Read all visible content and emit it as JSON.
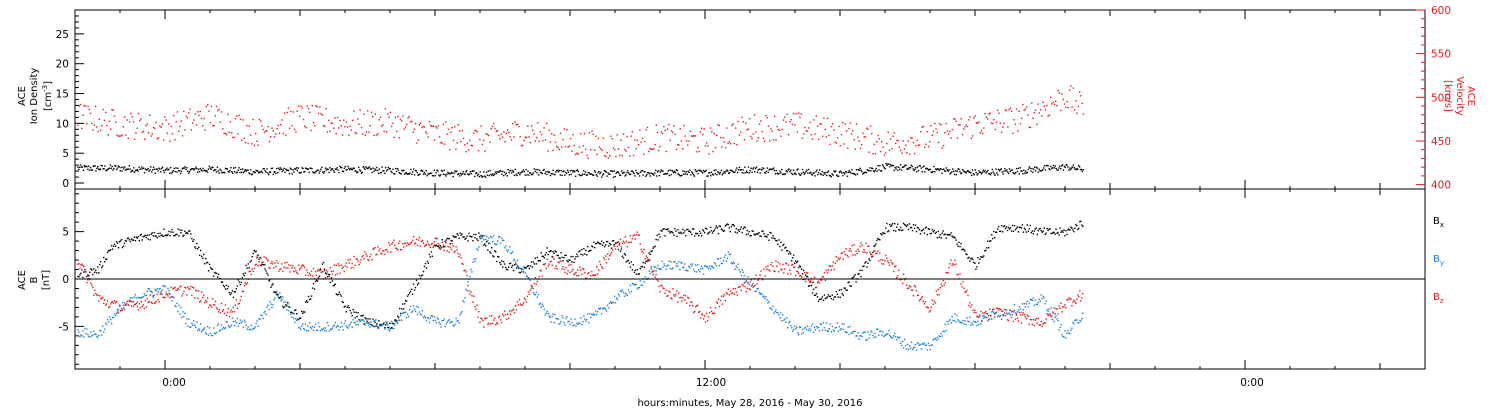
{
  "footer": {
    "xlabel": "hours:minutes, May 28, 2016 - May 30, 2016"
  },
  "colors": {
    "black": "#000000",
    "red": "#e41a1c",
    "blue": "#1f7fd6"
  },
  "chart_data": [
    {
      "type": "scatter",
      "ylabel_left": [
        "ACE",
        "Ion Density",
        "[cm",
        "-3",
        "]"
      ],
      "ylabel_right": [
        "ACE",
        "Velocity",
        "[km/s]"
      ],
      "xlim_hours": [
        -2,
        28
      ],
      "x_ticks": [
        "0:00",
        "12:00",
        "0:00"
      ],
      "data_end_hour": 20.4,
      "ylim_left": [
        -1,
        29
      ],
      "yticks_left": [
        "0",
        "5",
        "10",
        "15",
        "20",
        "25"
      ],
      "ylim_right": [
        395,
        600
      ],
      "yticks_right": [
        "400",
        "450",
        "500",
        "550",
        "600"
      ],
      "series": [
        {
          "axis": "left",
          "color": "#000000",
          "x": [
            -2,
            -1,
            0,
            1,
            2,
            3,
            4,
            5,
            6,
            7,
            8,
            9,
            10,
            11,
            12,
            13,
            14,
            15,
            16,
            17,
            18,
            19,
            20,
            20.4
          ],
          "y": [
            2.6,
            2.6,
            2.2,
            2.4,
            2.0,
            2.2,
            2.4,
            2.2,
            1.8,
            1.6,
            2.0,
            1.8,
            1.6,
            1.8,
            1.8,
            2.4,
            2.0,
            1.6,
            2.8,
            2.4,
            1.8,
            2.2,
            2.8,
            2.4
          ]
        },
        {
          "axis": "right",
          "color": "#e41a1c",
          "x": [
            -2,
            -1,
            0,
            1,
            2,
            3,
            4,
            5,
            6,
            7,
            8,
            9,
            10,
            11,
            12,
            13,
            14,
            15,
            16,
            17,
            18,
            19,
            20,
            20.4
          ],
          "y": [
            480,
            470,
            465,
            480,
            460,
            478,
            470,
            472,
            458,
            452,
            462,
            448,
            445,
            455,
            450,
            466,
            468,
            460,
            448,
            454,
            470,
            476,
            502,
            488
          ]
        }
      ]
    },
    {
      "type": "scatter",
      "ylabel": [
        "ACE",
        "B",
        "[nT]"
      ],
      "xlim_hours": [
        -2,
        28
      ],
      "ylim": [
        -9.5,
        9.5
      ],
      "yticks": [
        "-5",
        "0",
        "5"
      ],
      "zero_line": true,
      "series": [
        {
          "name": "B",
          "sub": "x",
          "color": "#000000",
          "x": [
            -2,
            -1.5,
            -1.2,
            -0.5,
            0,
            0.5,
            1,
            1.5,
            2,
            2.5,
            3,
            3.5,
            4,
            4.5,
            5,
            5.5,
            6,
            6.5,
            7,
            7.5,
            8,
            8.5,
            9,
            9.5,
            10,
            10.5,
            11,
            11.5,
            12,
            12.5,
            13,
            13.5,
            14,
            14.5,
            15,
            15.5,
            16,
            16.5,
            17,
            17.5,
            18,
            18.5,
            19,
            19.5,
            20,
            20.4
          ],
          "y": [
            0.5,
            1.0,
            3.5,
            4.5,
            5.0,
            5.0,
            1.0,
            -1.5,
            3.0,
            -2.0,
            -4.0,
            1.5,
            -3.0,
            -4.5,
            -5.0,
            -1.0,
            3.5,
            4.5,
            4.5,
            1.5,
            1.0,
            3.0,
            2.0,
            3.5,
            3.8,
            0.5,
            5.0,
            5.0,
            5.0,
            5.5,
            5.0,
            4.5,
            2.0,
            -2.0,
            -1.5,
            1.0,
            5.5,
            5.5,
            5.0,
            4.5,
            1.5,
            5.5,
            5.5,
            5.0,
            5.0,
            6.0
          ]
        },
        {
          "name": "B",
          "sub": "y",
          "color": "#1f7fd6",
          "x": [
            -2,
            -1.5,
            -1,
            -0.5,
            0,
            0.5,
            1,
            1.5,
            2,
            2.5,
            3,
            3.5,
            4,
            4.5,
            5,
            5.5,
            6,
            6.5,
            7,
            7.5,
            8,
            8.5,
            9,
            9.5,
            10,
            10.5,
            11,
            11.5,
            12,
            12.5,
            13,
            13.5,
            14,
            14.5,
            15,
            15.5,
            16,
            16.5,
            17,
            17.5,
            18,
            18.5,
            19,
            19.5,
            20,
            20.4
          ],
          "y": [
            -5.5,
            -5.8,
            -3.0,
            -1.5,
            -1.0,
            -4.5,
            -5.5,
            -4.5,
            -5.0,
            -1.5,
            -5.0,
            -5.0,
            -4.8,
            -4.5,
            -5.0,
            -3.0,
            -4.5,
            -4.5,
            4.5,
            4.0,
            0.5,
            -4.0,
            -4.5,
            -4.0,
            -2.0,
            -0.5,
            1.5,
            1.5,
            1.0,
            2.5,
            -0.5,
            -3.0,
            -5.5,
            -5.0,
            -5.0,
            -6.0,
            -5.5,
            -7.0,
            -7.0,
            -4.0,
            -4.5,
            -3.5,
            -3.0,
            -2.0,
            -6.0,
            -3.5
          ]
        },
        {
          "name": "B",
          "sub": "z",
          "color": "#e41a1c",
          "x": [
            -2,
            -1.5,
            -1,
            -0.5,
            0,
            0.5,
            1,
            1.5,
            2,
            2.5,
            3,
            3.5,
            4,
            4.5,
            5,
            5.5,
            6,
            6.5,
            7,
            7.5,
            8,
            8.5,
            9,
            9.5,
            10,
            10.5,
            11,
            11.5,
            12,
            12.5,
            13,
            13.5,
            14,
            14.5,
            15,
            15.5,
            16,
            16.5,
            17,
            17.5,
            18,
            18.5,
            19,
            19.5,
            20,
            20.4
          ],
          "y": [
            2.5,
            -2.0,
            -3.0,
            -2.5,
            -1.5,
            -1.0,
            -2.5,
            -3.5,
            2.0,
            1.5,
            1.0,
            0.5,
            1.5,
            2.5,
            3.5,
            4.0,
            4.0,
            3.0,
            -4.5,
            -4.0,
            -2.0,
            2.0,
            1.0,
            0.5,
            3.5,
            4.5,
            -1.0,
            -2.0,
            -4.0,
            -1.5,
            -0.5,
            1.5,
            1.0,
            -0.5,
            2.5,
            3.5,
            2.0,
            -0.5,
            -3.0,
            2.0,
            -4.0,
            -3.5,
            -4.0,
            -4.5,
            -2.5,
            -1.5
          ]
        }
      ]
    }
  ]
}
